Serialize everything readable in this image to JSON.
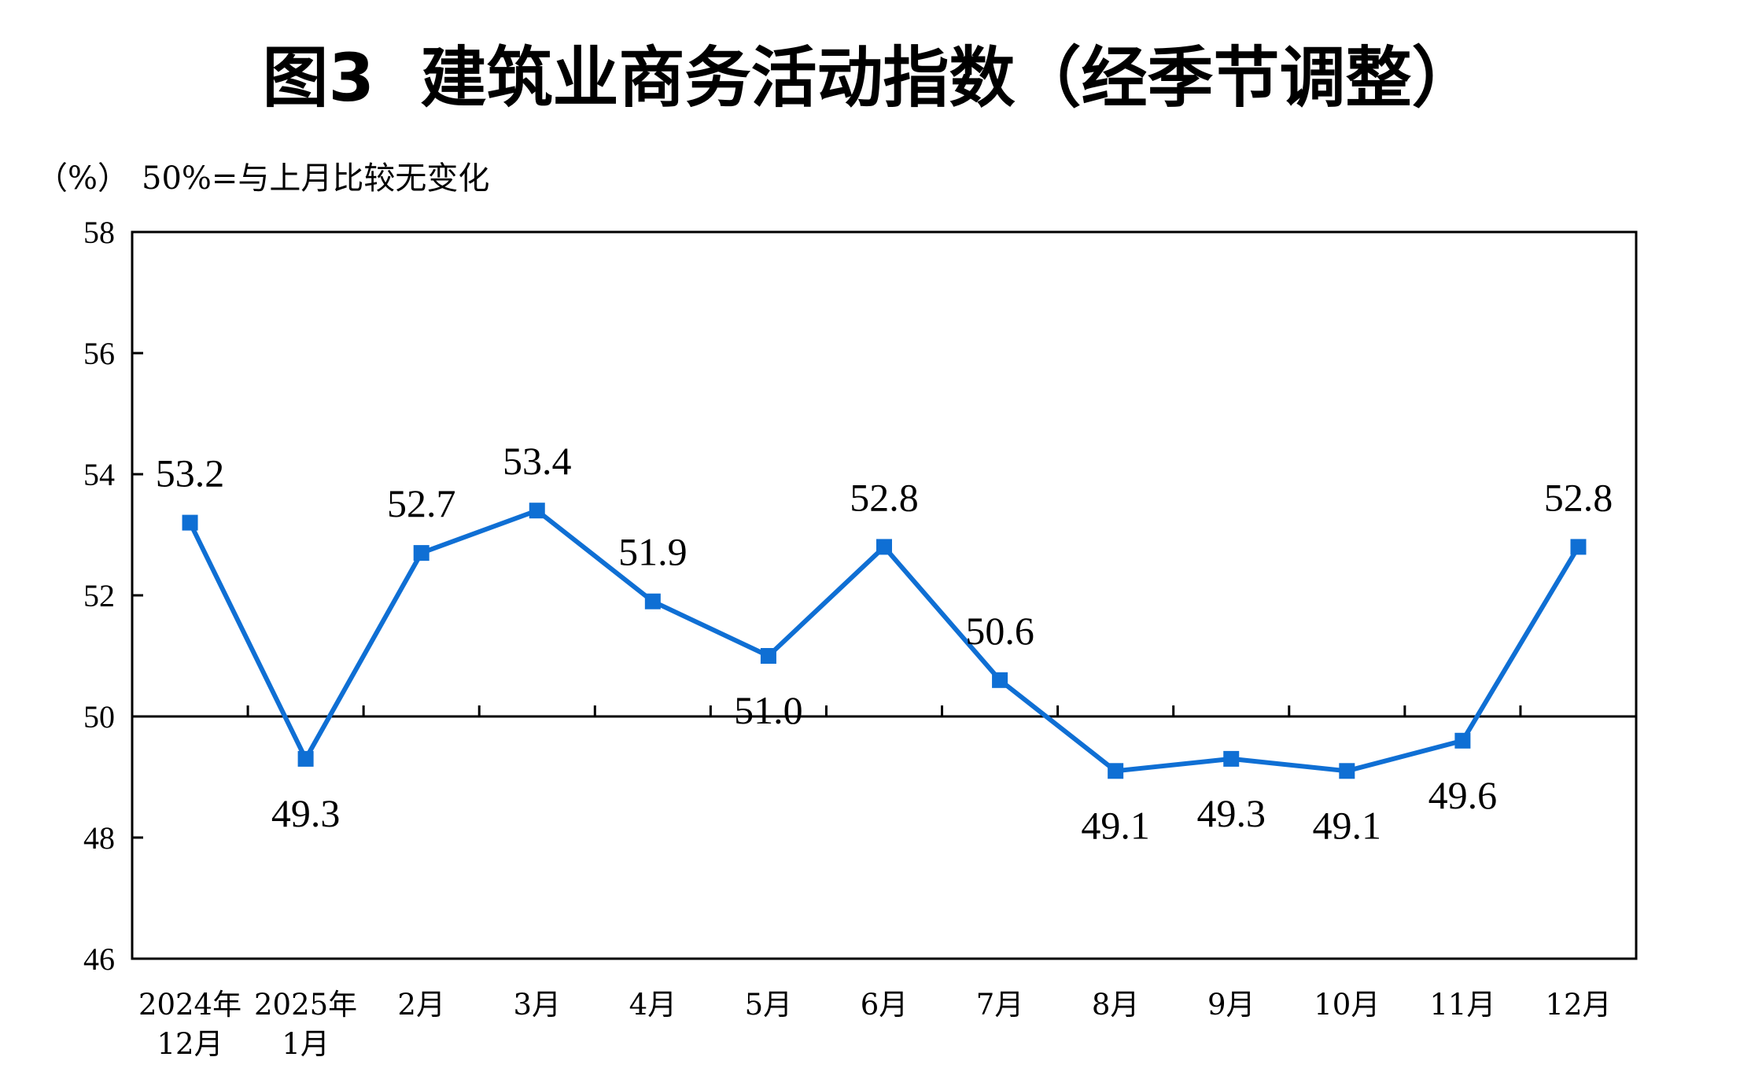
{
  "chart_data": {
    "type": "line",
    "title": "图3  建筑业商务活动指数（经季节调整）",
    "unit_label": "（%）",
    "reference_note": "50%=与上月比较无变化",
    "ylim": [
      46,
      58
    ],
    "yticks": [
      "46",
      "48",
      "50",
      "52",
      "54",
      "56",
      "58"
    ],
    "reference_line": 50,
    "grid": false,
    "categories": [
      [
        "2024年",
        "12月"
      ],
      [
        "2025年",
        "1月"
      ],
      [
        "2月"
      ],
      [
        "3月"
      ],
      [
        "4月"
      ],
      [
        "5月"
      ],
      [
        "6月"
      ],
      [
        "7月"
      ],
      [
        "8月"
      ],
      [
        "9月"
      ],
      [
        "10月"
      ],
      [
        "11月"
      ],
      [
        "12月"
      ]
    ],
    "series": [
      {
        "values": [
          53.2,
          49.3,
          52.7,
          53.4,
          51.9,
          51.0,
          52.8,
          50.6,
          49.1,
          49.3,
          49.1,
          49.6,
          52.8
        ],
        "labels": [
          "53.2",
          "49.3",
          "52.7",
          "53.4",
          "51.9",
          "51.0",
          "52.8",
          "50.6",
          "49.1",
          "49.3",
          "49.1",
          "49.6",
          "52.8"
        ],
        "color": "#0f6fd4"
      }
    ],
    "axis_color": "#000000"
  }
}
